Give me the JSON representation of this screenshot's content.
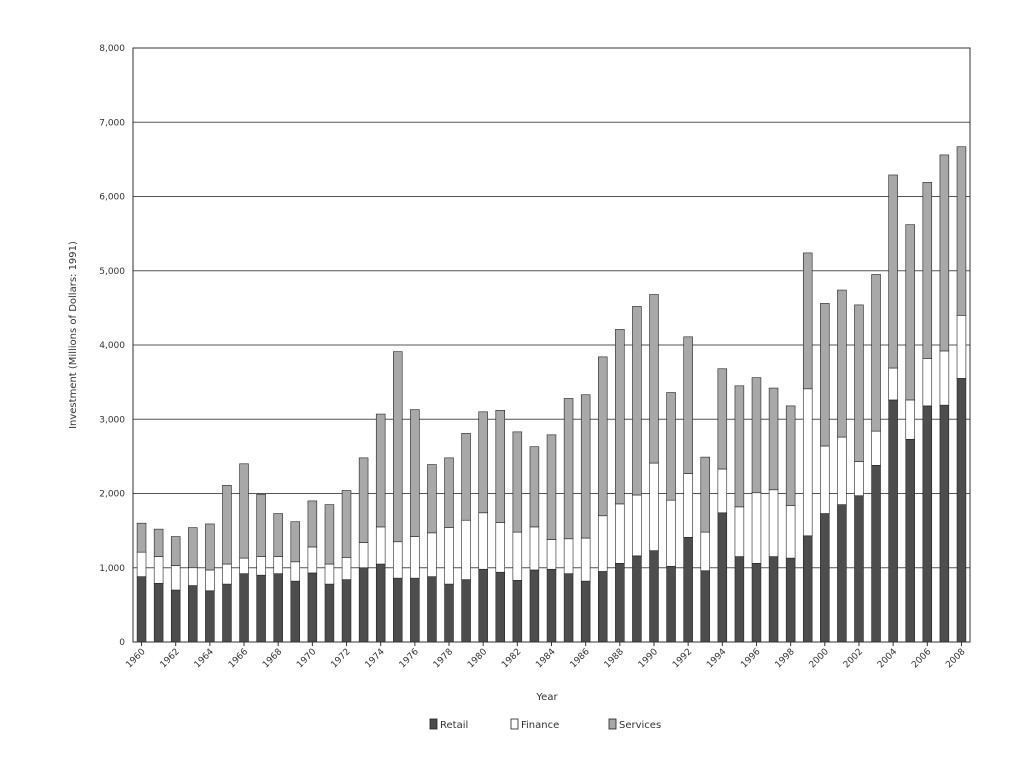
{
  "chart_data": {
    "type": "bar",
    "stacked": true,
    "title": "",
    "xlabel": "Year",
    "ylabel": "Investment (Millions of Dollars: 1991)",
    "ylim": [
      0,
      8000
    ],
    "yticks": [
      0,
      1000,
      2000,
      3000,
      4000,
      5000,
      6000,
      7000,
      8000
    ],
    "ytick_labels": [
      "0",
      "1,000",
      "2,000",
      "3,000",
      "4,000",
      "5,000",
      "6,000",
      "7,000",
      "8,000"
    ],
    "grid": "horizontal",
    "legend_position": "bottom",
    "categories": [
      "1960",
      "1961",
      "1962",
      "1963",
      "1964",
      "1965",
      "1966",
      "1967",
      "1968",
      "1969",
      "1970",
      "1971",
      "1972",
      "1973",
      "1974",
      "1975",
      "1976",
      "1977",
      "1978",
      "1979",
      "1980",
      "1981",
      "1982",
      "1983",
      "1984",
      "1985",
      "1986",
      "1987",
      "1988",
      "1989",
      "1990",
      "1991",
      "1992",
      "1993",
      "1994",
      "1995",
      "1996",
      "1997",
      "1998",
      "1999",
      "2000",
      "2001",
      "2002",
      "2003",
      "2004",
      "2005",
      "2006",
      "2007",
      "2008"
    ],
    "xtick_labels": [
      "1960",
      "1962",
      "1964",
      "1966",
      "1968",
      "1970",
      "1972",
      "1974",
      "1976",
      "1978",
      "1980",
      "1982",
      "1984",
      "1986",
      "1988",
      "1990",
      "1992",
      "1994",
      "1996",
      "1998",
      "2000",
      "2002",
      "2004",
      "2006",
      "2008"
    ],
    "series": [
      {
        "name": "Retail",
        "color": "#4d4d4d",
        "values": [
          880,
          790,
          700,
          760,
          690,
          780,
          920,
          900,
          920,
          820,
          930,
          780,
          840,
          1000,
          1050,
          860,
          860,
          880,
          780,
          840,
          980,
          940,
          830,
          970,
          980,
          920,
          820,
          950,
          1060,
          1160,
          1230,
          1020,
          1410,
          960,
          1740,
          1150,
          1060,
          1150,
          1130,
          1430,
          1730,
          1850,
          1970,
          2380,
          3260,
          2730,
          3180,
          3190,
          3550
        ]
      },
      {
        "name": "Finance",
        "color": "#ffffff",
        "values": [
          330,
          360,
          330,
          240,
          280,
          270,
          210,
          250,
          230,
          260,
          350,
          270,
          300,
          340,
          500,
          490,
          560,
          590,
          760,
          800,
          760,
          670,
          650,
          580,
          400,
          470,
          580,
          750,
          800,
          820,
          1180,
          890,
          860,
          520,
          590,
          670,
          950,
          900,
          710,
          1980,
          910,
          910,
          460,
          460,
          430,
          530,
          640,
          730,
          850
        ]
      },
      {
        "name": "Services",
        "color": "#a8a8a8",
        "values": [
          390,
          370,
          390,
          540,
          620,
          1060,
          1270,
          840,
          580,
          540,
          620,
          800,
          900,
          1140,
          1520,
          2560,
          1710,
          920,
          940,
          1170,
          1360,
          1510,
          1350,
          1080,
          1410,
          1890,
          1930,
          2140,
          2350,
          2540,
          2270,
          1450,
          1840,
          1010,
          1350,
          1630,
          1550,
          1370,
          1340,
          1830,
          1920,
          1980,
          2110,
          2110,
          2600,
          2360,
          2370,
          2640,
          2270
        ]
      }
    ]
  }
}
